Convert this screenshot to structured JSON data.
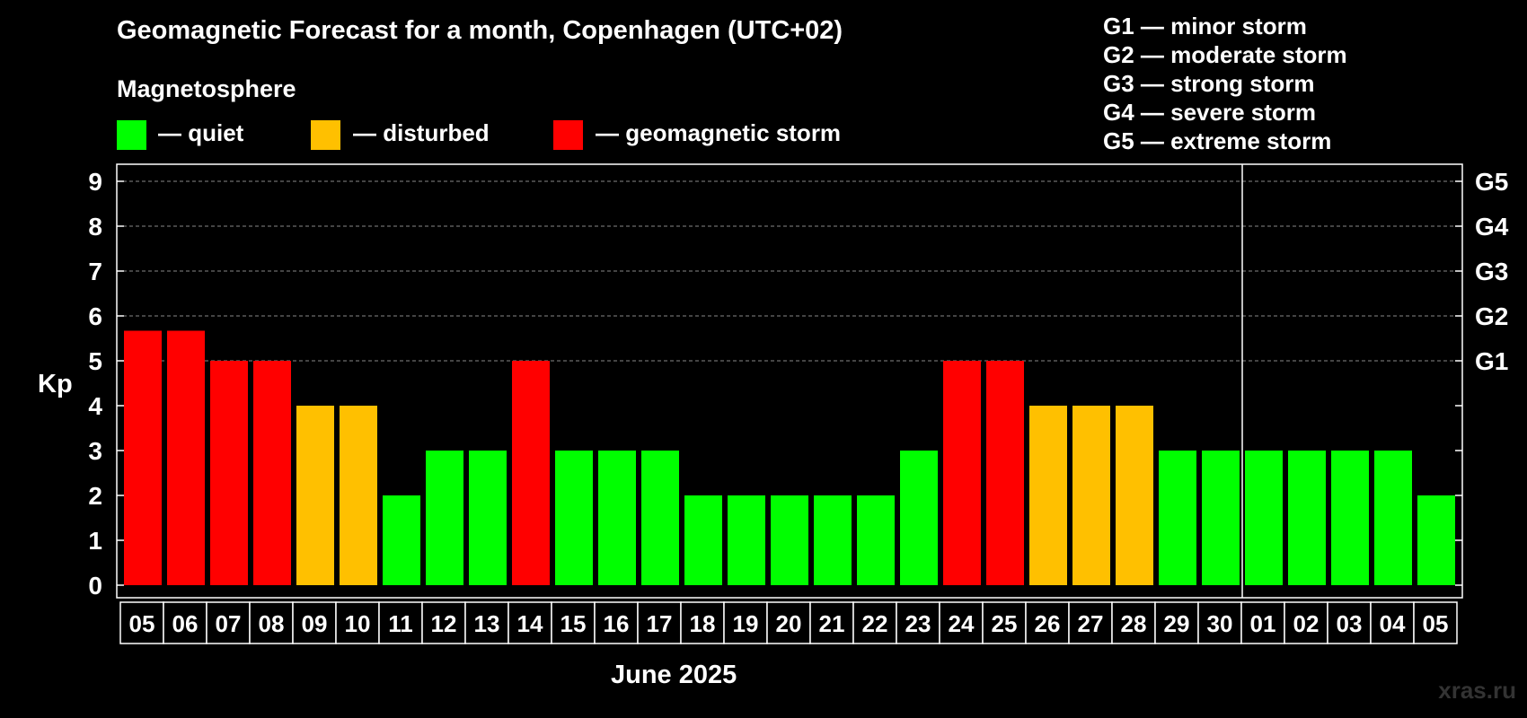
{
  "title": "Geomagnetic Forecast for a month, Copenhagen (UTC+02)",
  "legend": {
    "heading": "Magnetosphere",
    "items": [
      {
        "label": "— quiet",
        "color": "#00ff00"
      },
      {
        "label": "— disturbed",
        "color": "#ffc000"
      },
      {
        "label": "— geomagnetic storm",
        "color": "#ff0000"
      }
    ]
  },
  "storm_scale": [
    "G1 — minor storm",
    "G2 — moderate storm",
    "G3 — strong storm",
    "G4 — severe storm",
    "G5 — extreme storm"
  ],
  "watermark": "xras.ru",
  "chart_data": {
    "type": "bar",
    "ylabel": "Kp",
    "xlabel": "June 2025",
    "ylim": [
      0,
      9
    ],
    "y_ticks": [
      "0",
      "1",
      "2",
      "3",
      "4",
      "5",
      "6",
      "7",
      "8",
      "9"
    ],
    "right_axis_labels": [
      {
        "kp": 5,
        "label": "G1"
      },
      {
        "kp": 6,
        "label": "G2"
      },
      {
        "kp": 7,
        "label": "G3"
      },
      {
        "kp": 8,
        "label": "G4"
      },
      {
        "kp": 9,
        "label": "G5"
      }
    ],
    "grid": "dashed horizontal at Kp 5-9",
    "month_divider_after_index": 25,
    "categories": [
      "05",
      "06",
      "07",
      "08",
      "09",
      "10",
      "11",
      "12",
      "13",
      "14",
      "15",
      "16",
      "17",
      "18",
      "19",
      "20",
      "21",
      "22",
      "23",
      "24",
      "25",
      "26",
      "27",
      "28",
      "29",
      "30",
      "01",
      "02",
      "03",
      "04",
      "05"
    ],
    "values": [
      5.67,
      5.67,
      5,
      5,
      4,
      4,
      2,
      3,
      3,
      5,
      3,
      3,
      3,
      2,
      2,
      2,
      2,
      2,
      3,
      5,
      5,
      4,
      4,
      4,
      3,
      3,
      3,
      3,
      3,
      3,
      2
    ],
    "colors": {
      "quiet": "#00ff00",
      "disturbed": "#ffc000",
      "storm": "#ff0000"
    }
  }
}
